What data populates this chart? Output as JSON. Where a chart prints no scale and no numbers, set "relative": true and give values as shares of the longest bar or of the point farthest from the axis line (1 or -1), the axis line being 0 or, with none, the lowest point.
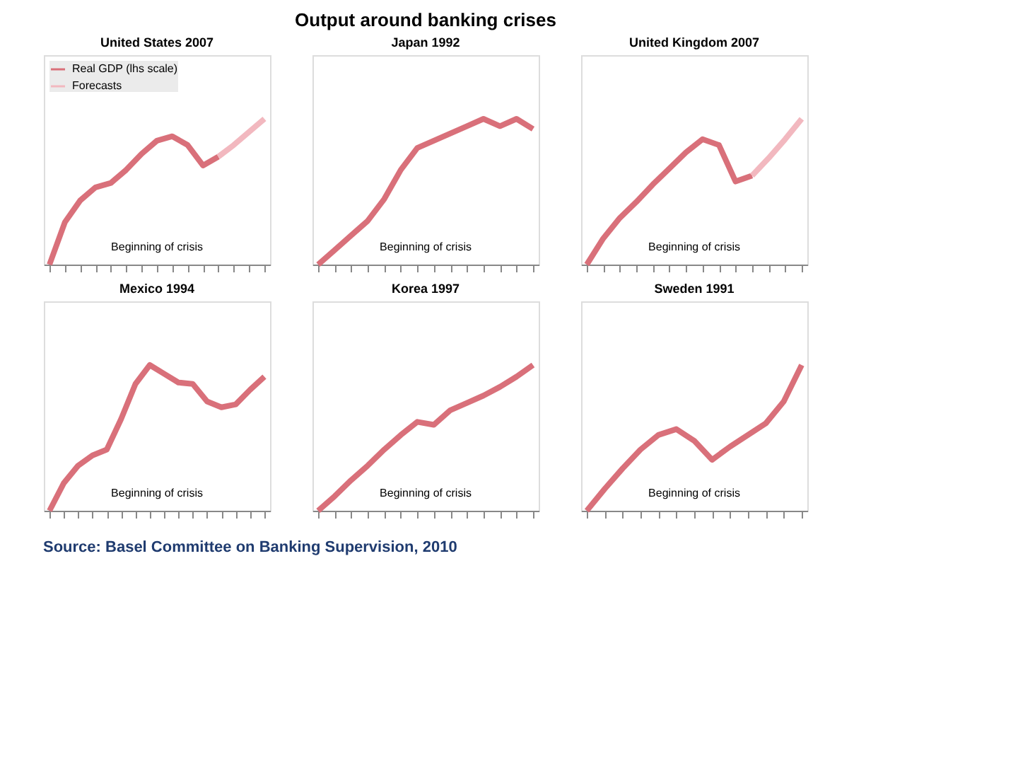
{
  "chart_data": [
    {
      "type": "line",
      "title": "United States 2007",
      "relative": true,
      "tick_labels": false,
      "legend": "top left",
      "grid": false,
      "annotations": [
        "Beginning of crisis"
      ],
      "categories": [
        null,
        null,
        null,
        null,
        null,
        null,
        null,
        null,
        null,
        null,
        null,
        null,
        null,
        null,
        null
      ],
      "series": [
        {
          "name": "Real GDP (lhs scale)",
          "color": "#d9707a",
          "values": [
            0,
            0.29,
            0.44,
            0.53,
            0.56,
            0.65,
            0.76,
            0.85,
            0.88,
            0.82,
            0.68,
            0.74,
            null,
            null,
            null
          ]
        },
        {
          "name": "Forecasts",
          "color": "#f2b8bf",
          "values": [
            null,
            null,
            null,
            null,
            null,
            null,
            null,
            null,
            null,
            null,
            null,
            0.74,
            0.82,
            0.91,
            1.0
          ]
        }
      ]
    },
    {
      "type": "line",
      "title": "Japan 1992",
      "relative": true,
      "tick_labels": false,
      "grid": false,
      "annotations": [
        "Beginning of crisis"
      ],
      "categories": [
        null,
        null,
        null,
        null,
        null,
        null,
        null,
        null,
        null,
        null,
        null,
        null,
        null,
        null
      ],
      "series": [
        {
          "color": "#d9707a",
          "values": [
            0,
            0.1,
            0.2,
            0.3,
            0.45,
            0.65,
            0.8,
            0.85,
            0.9,
            0.95,
            1,
            0.95,
            1,
            0.93
          ]
        }
      ]
    },
    {
      "type": "line",
      "title": "United Kingdom 2007",
      "relative": true,
      "tick_labels": false,
      "grid": false,
      "annotations": [
        "Beginning of crisis"
      ],
      "categories": [
        null,
        null,
        null,
        null,
        null,
        null,
        null,
        null,
        null,
        null,
        null,
        null,
        null,
        null
      ],
      "series": [
        {
          "color": "#d9707a",
          "values": [
            0,
            0.18,
            0.32,
            0.43,
            0.55,
            0.66,
            0.77,
            0.86,
            0.82,
            0.57,
            0.61,
            null,
            null,
            null
          ]
        },
        {
          "color": "#f2b8bf",
          "values": [
            null,
            null,
            null,
            null,
            null,
            null,
            null,
            null,
            null,
            null,
            0.61,
            0.73,
            0.86,
            1.0
          ]
        }
      ]
    },
    {
      "type": "line",
      "title": "Mexico 1994",
      "relative": true,
      "tick_labels": false,
      "grid": false,
      "annotations": [
        "Beginning of crisis"
      ],
      "categories": [
        null,
        null,
        null,
        null,
        null,
        null,
        null,
        null,
        null,
        null,
        null,
        null,
        null,
        null,
        null,
        null
      ],
      "series": [
        {
          "color": "#d9707a",
          "values": [
            0,
            0.19,
            0.31,
            0.38,
            0.42,
            0.63,
            0.87,
            1,
            0.94,
            0.88,
            0.87,
            0.75,
            0.71,
            0.73,
            0.83,
            0.92
          ]
        }
      ]
    },
    {
      "type": "line",
      "title": "Korea 1997",
      "relative": true,
      "tick_labels": false,
      "grid": false,
      "annotations": [
        "Beginning of crisis"
      ],
      "categories": [
        null,
        null,
        null,
        null,
        null,
        null,
        null,
        null,
        null,
        null,
        null,
        null,
        null,
        null
      ],
      "series": [
        {
          "color": "#d9707a",
          "values": [
            0,
            0.1,
            0.21,
            0.31,
            0.42,
            0.52,
            0.61,
            0.59,
            0.69,
            0.74,
            0.79,
            0.85,
            0.92,
            1
          ]
        }
      ]
    },
    {
      "type": "line",
      "title": "Sweden 1991",
      "relative": true,
      "tick_labels": false,
      "grid": false,
      "annotations": [
        "Beginning of crisis"
      ],
      "categories": [
        null,
        null,
        null,
        null,
        null,
        null,
        null,
        null,
        null,
        null,
        null,
        null,
        null
      ],
      "series": [
        {
          "color": "#d9707a",
          "values": [
            0,
            0.15,
            0.29,
            0.42,
            0.52,
            0.56,
            0.48,
            0.35,
            0.44,
            0.52,
            0.6,
            0.75,
            1
          ]
        }
      ]
    },
    {
      "type": "other",
      "title": "Output around banking crises",
      "annotations": [
        "Source: Basel Committee on Banking Supervision, 2010"
      ]
    }
  ]
}
